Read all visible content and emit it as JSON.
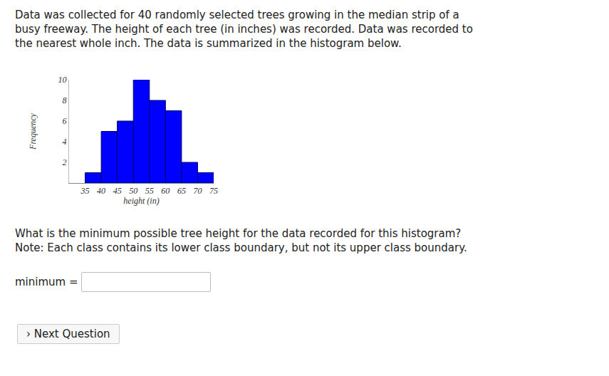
{
  "question": {
    "intro": [
      "Data was collected for 40 randomly selected trees growing in the median strip of a",
      "busy freeway. The height of each tree (in inches) was recorded. Data was recorded to",
      "the nearest whole inch. The data is summarized in the histogram below."
    ],
    "prompt": [
      "What is the minimum possible tree height for the data recorded for this histogram?",
      "Note: Each class contains its lower class boundary, but not its upper class boundary."
    ],
    "answer_label": "minimum =",
    "button": "› Next Question"
  },
  "chart_data": {
    "type": "histogram",
    "x_label": "height (in)",
    "y_label": "Frequency",
    "bins": [
      35,
      40,
      45,
      50,
      55,
      60,
      65,
      70,
      75
    ],
    "values": [
      1,
      5,
      6,
      10,
      8,
      7,
      2,
      1
    ],
    "color": "#0000ff",
    "xlim": [
      30,
      75
    ],
    "xticks": [
      35,
      40,
      45,
      50,
      55,
      60,
      65,
      70,
      75
    ],
    "ylim": [
      0,
      10
    ],
    "yticks": [
      2,
      4,
      6,
      8,
      10
    ],
    "grid": false
  }
}
